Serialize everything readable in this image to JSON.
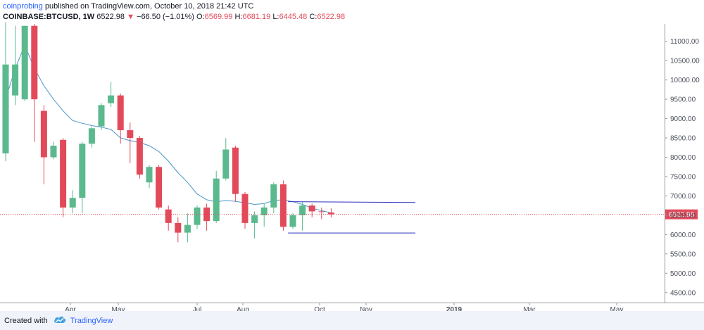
{
  "header": {
    "author": "coinprobing",
    "published": "published on TradingView.com, October 10, 2018 21:42 UTC",
    "symbol": "COINBASE:BTCUSD, 1W",
    "last": "6522.98",
    "change": "−66.50 (−1.01%)",
    "o_label": "O:",
    "o_value": "6569.99",
    "h_label": "H:",
    "h_value": "6681.19",
    "l_label": "L:",
    "l_value": "6445.48",
    "c_label": "C:",
    "c_value": "6522.98"
  },
  "footer": {
    "created_with": "Created with",
    "brand": "TradingView"
  },
  "colors": {
    "up": "#5ab98d",
    "down": "#e24a5a",
    "ma": "#4a96c8",
    "channel": "#2a2fbf",
    "price_line": "#e24a5a",
    "price_label_bg": "#e24a5a",
    "grid": "#e0e3eb"
  },
  "chart_data": {
    "type": "candlestick",
    "title": "COINBASE:BTCUSD, 1W",
    "ylim": [
      4350,
      11450
    ],
    "y_ticks": [
      "4500.00",
      "5000.00",
      "5500.00",
      "6000.00",
      "6500.00",
      "7000.00",
      "7500.00",
      "8000.00",
      "8500.00",
      "9000.00",
      "9500.00",
      "10000.00",
      "10500.00",
      "11000.00"
    ],
    "x_ticks": [
      "Apr",
      "May",
      "Jul",
      "Aug",
      "Oct",
      "Nov",
      "2019",
      "Mar",
      "May"
    ],
    "last_price_label": "6522.98",
    "last_price": 6522.98,
    "candles": [
      {
        "o": 8100,
        "h": 11500,
        "l": 7900,
        "c": 10400
      },
      {
        "o": 9600,
        "h": 11400,
        "l": 9350,
        "c": 10400
      },
      {
        "o": 9500,
        "h": 11400,
        "l": 9450,
        "c": 11400
      },
      {
        "o": 11400,
        "h": 11450,
        "l": 8400,
        "c": 9500
      },
      {
        "o": 9200,
        "h": 9350,
        "l": 7300,
        "c": 8000
      },
      {
        "o": 8000,
        "h": 8400,
        "l": 7950,
        "c": 8300
      },
      {
        "o": 8450,
        "h": 8500,
        "l": 6450,
        "c": 6700
      },
      {
        "o": 6700,
        "h": 7150,
        "l": 6550,
        "c": 6950
      },
      {
        "o": 6950,
        "h": 8400,
        "l": 6550,
        "c": 8350
      },
      {
        "o": 8350,
        "h": 8800,
        "l": 8250,
        "c": 8750
      },
      {
        "o": 8800,
        "h": 9400,
        "l": 8700,
        "c": 9350
      },
      {
        "o": 9400,
        "h": 9950,
        "l": 9300,
        "c": 9600
      },
      {
        "o": 9600,
        "h": 9650,
        "l": 8350,
        "c": 8700
      },
      {
        "o": 8700,
        "h": 8900,
        "l": 7850,
        "c": 8500
      },
      {
        "o": 8500,
        "h": 8550,
        "l": 7450,
        "c": 7550
      },
      {
        "o": 7350,
        "h": 7800,
        "l": 7200,
        "c": 7750
      },
      {
        "o": 7750,
        "h": 7800,
        "l": 6650,
        "c": 6700
      },
      {
        "o": 6650,
        "h": 6750,
        "l": 6100,
        "c": 6300
      },
      {
        "o": 6300,
        "h": 6450,
        "l": 5800,
        "c": 6050
      },
      {
        "o": 6050,
        "h": 6550,
        "l": 5800,
        "c": 6250
      },
      {
        "o": 6250,
        "h": 6750,
        "l": 6150,
        "c": 6700
      },
      {
        "o": 6700,
        "h": 6800,
        "l": 6100,
        "c": 6350
      },
      {
        "o": 6350,
        "h": 7650,
        "l": 6300,
        "c": 7450
      },
      {
        "o": 7450,
        "h": 8500,
        "l": 7400,
        "c": 8200
      },
      {
        "o": 8250,
        "h": 8300,
        "l": 6850,
        "c": 7050
      },
      {
        "o": 7050,
        "h": 7100,
        "l": 6150,
        "c": 6300
      },
      {
        "o": 6300,
        "h": 6600,
        "l": 5900,
        "c": 6500
      },
      {
        "o": 6500,
        "h": 6800,
        "l": 6200,
        "c": 6700
      },
      {
        "o": 6700,
        "h": 7350,
        "l": 6550,
        "c": 7300
      },
      {
        "o": 7300,
        "h": 7400,
        "l": 6100,
        "c": 6200
      },
      {
        "o": 6200,
        "h": 6550,
        "l": 6150,
        "c": 6500
      },
      {
        "o": 6500,
        "h": 6850,
        "l": 6100,
        "c": 6750
      },
      {
        "o": 6750,
        "h": 6800,
        "l": 6450,
        "c": 6600
      },
      {
        "o": 6600,
        "h": 6700,
        "l": 6400,
        "c": 6590
      },
      {
        "o": 6570,
        "h": 6681,
        "l": 6445,
        "c": 6523
      }
    ],
    "moving_average": [
      {
        "i": 0,
        "v": 9500
      },
      {
        "i": 1,
        "v": 10300
      },
      {
        "i": 2,
        "v": 10900
      },
      {
        "i": 3,
        "v": 10300
      },
      {
        "i": 4,
        "v": 9850
      },
      {
        "i": 5,
        "v": 9500
      },
      {
        "i": 6,
        "v": 9200
      },
      {
        "i": 7,
        "v": 8950
      },
      {
        "i": 8,
        "v": 8880
      },
      {
        "i": 9,
        "v": 8820
      },
      {
        "i": 10,
        "v": 8780
      },
      {
        "i": 11,
        "v": 8720
      },
      {
        "i": 12,
        "v": 8500
      },
      {
        "i": 13,
        "v": 8430
      },
      {
        "i": 14,
        "v": 8380
      },
      {
        "i": 15,
        "v": 8300
      },
      {
        "i": 16,
        "v": 8150
      },
      {
        "i": 17,
        "v": 7900
      },
      {
        "i": 18,
        "v": 7600
      },
      {
        "i": 19,
        "v": 7350
      },
      {
        "i": 20,
        "v": 7050
      },
      {
        "i": 21,
        "v": 6900
      },
      {
        "i": 22,
        "v": 6850
      },
      {
        "i": 23,
        "v": 6880
      },
      {
        "i": 24,
        "v": 6860
      },
      {
        "i": 25,
        "v": 6820
      },
      {
        "i": 26,
        "v": 6780
      },
      {
        "i": 27,
        "v": 6800
      },
      {
        "i": 28,
        "v": 6880
      },
      {
        "i": 29,
        "v": 6900
      },
      {
        "i": 30,
        "v": 6850
      },
      {
        "i": 31,
        "v": 6780
      },
      {
        "i": 32,
        "v": 6680
      },
      {
        "i": 33,
        "v": 6620
      },
      {
        "i": 34,
        "v": 6560
      }
    ],
    "channel_lines": [
      {
        "x0": 29.5,
        "y0": 6850,
        "x1": 40,
        "y1": 6830
      },
      {
        "x0": 29.5,
        "y0": 6040,
        "x1": 40,
        "y1": 6040
      }
    ]
  }
}
